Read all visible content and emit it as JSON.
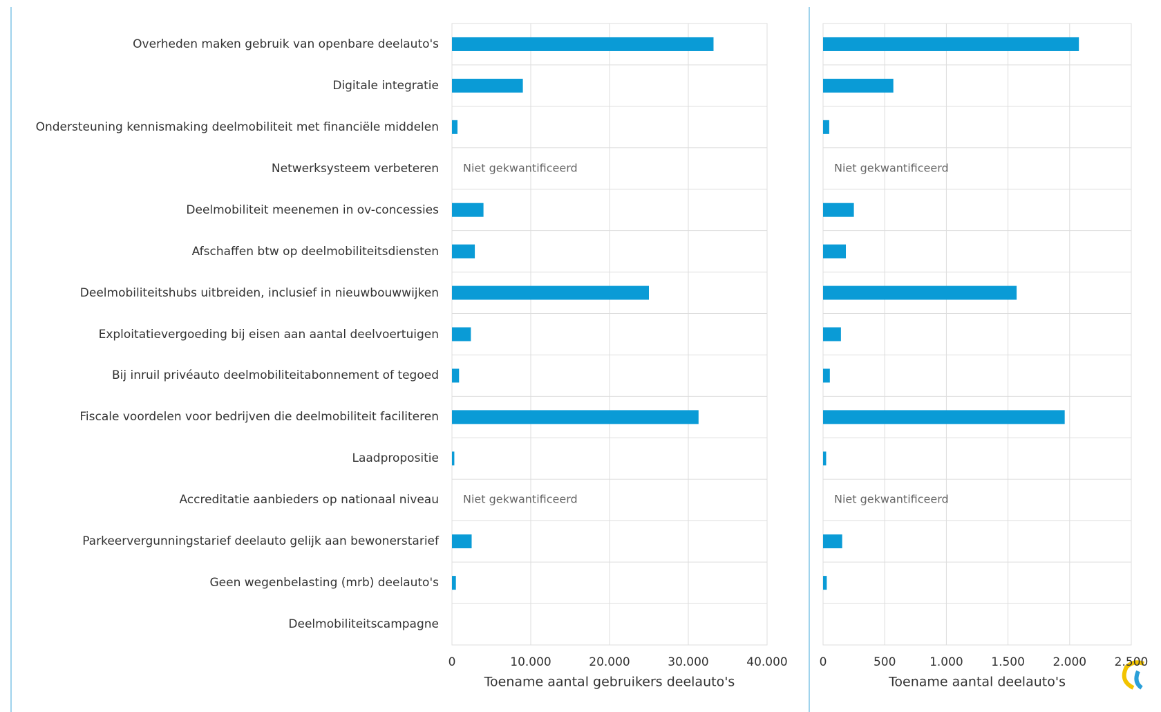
{
  "chart_data": [
    {
      "type": "barh",
      "categories": [
        "Overheden maken gebruik van openbare deelauto's",
        "Digitale integratie",
        "Ondersteuning kennismaking deelmobiliteit met financiële middelen",
        "Netwerksysteem verbeteren",
        "Deelmobiliteit meenemen in ov-concessies",
        "Afschaffen btw op deelmobiliteitsdiensten",
        "Deelmobiliteitshubs uitbreiden, inclusief in nieuwbouwwijken",
        "Exploitatievergoeding bij eisen aan aantal deelvoertuigen",
        "Bij inruil privéauto deelmobiliteitabonnement of tegoed",
        "Fiscale voordelen voor bedrijven die deelmobiliteit faciliteren",
        "Laadpropositie",
        "Accreditatie aanbieders op nationaal niveau",
        "Parkeervergunningstarief deelauto gelijk aan bewonerstarief",
        "Geen wegenbelasting (mrb) deelauto's",
        "Deelmobiliteitscampagne"
      ],
      "values": [
        33200,
        9000,
        700,
        null,
        4000,
        2900,
        25000,
        2400,
        900,
        31300,
        300,
        null,
        2500,
        500,
        0
      ],
      "color": "#0a9bd6",
      "annotations": [
        "Niet gekwantificeerd",
        "Niet gekwantificeerd"
      ],
      "xlabel": "Toename aantal gebruikers deelauto's",
      "xlim": [
        0,
        40000
      ],
      "xticks": [
        0,
        {
          "value": 10000,
          "label": "10.000"
        },
        {
          "value": 20000,
          "label": "20.000"
        },
        {
          "value": 30000,
          "label": "30.000"
        },
        {
          "value": 40000,
          "label": "40.000"
        }
      ],
      "grid": true
    },
    {
      "type": "barh",
      "values": [
        2075,
        570,
        50,
        null,
        250,
        185,
        1570,
        145,
        55,
        1960,
        25,
        null,
        155,
        30,
        0
      ],
      "color": "#0a9bd6",
      "annotations": [
        "Niet gekwantificeerd",
        "Niet gekwantificeerd"
      ],
      "xlabel": "Toename aantal deelauto's",
      "xlim": [
        0,
        2500
      ],
      "xticks": [
        0,
        500,
        {
          "value": 1000,
          "label": "1.000"
        },
        {
          "value": 1500,
          "label": "1.500"
        },
        {
          "value": 2000,
          "label": "2.000"
        },
        {
          "value": 2500,
          "label": "2.500"
        }
      ],
      "grid": true
    }
  ]
}
